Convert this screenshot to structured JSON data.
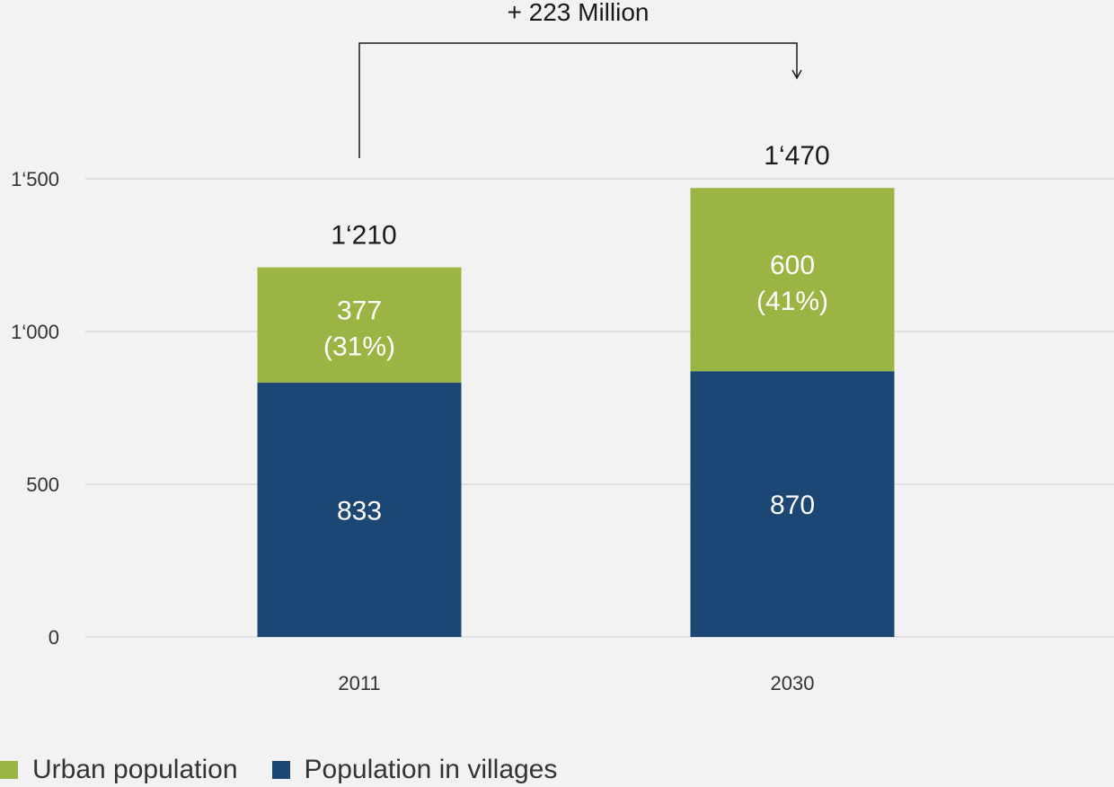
{
  "chart_data": {
    "type": "bar",
    "stacked": true,
    "categories": [
      "2011",
      "2030"
    ],
    "series": [
      {
        "name": "Population in villages",
        "color": "#1c4673",
        "values": [
          833,
          870
        ],
        "labels": [
          "833",
          "870"
        ]
      },
      {
        "name": "Urban population",
        "color": "#9bb545",
        "values": [
          377,
          600
        ],
        "labels": [
          "377",
          "600"
        ],
        "sublabels": [
          "(31%)",
          "(41%)"
        ]
      }
    ],
    "totals": [
      "1‘210",
      "1‘470"
    ],
    "ylim": [
      0,
      1500
    ],
    "yticks": [
      0,
      500,
      1000,
      1500
    ],
    "ytick_labels": [
      "0",
      "500",
      "1‘000",
      "1‘500"
    ],
    "grid": true,
    "gridline_color": "#d9d9d9",
    "annotation": {
      "text": "+ 223 Million",
      "from": "2011",
      "to": "2030"
    },
    "legend": {
      "placement": "bottom-left",
      "entries": [
        {
          "label": "Urban population",
          "color": "#9bb545"
        },
        {
          "label": "Population in villages",
          "color": "#1c4673"
        }
      ]
    },
    "title": "",
    "xlabel": "",
    "ylabel": ""
  }
}
